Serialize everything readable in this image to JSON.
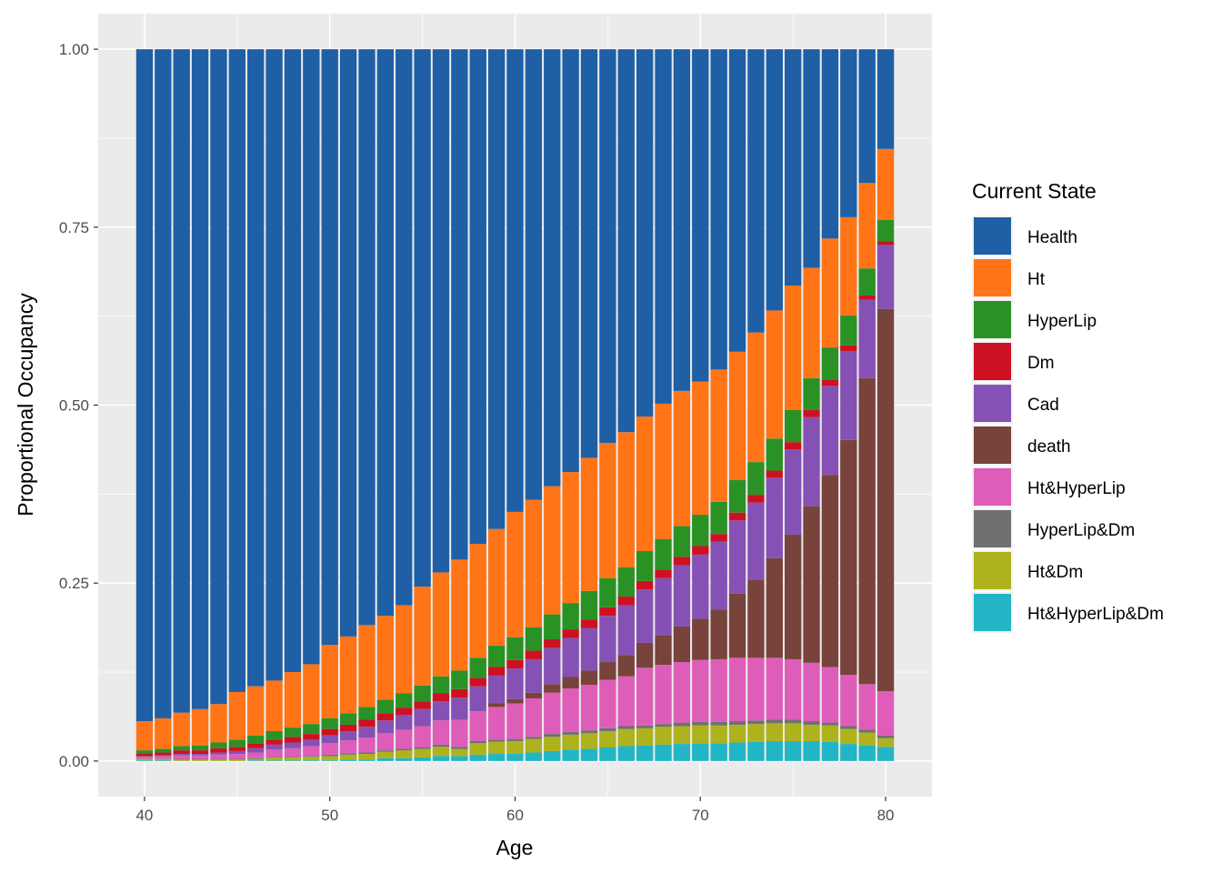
{
  "chart_data": {
    "type": "bar",
    "stacked": true,
    "xlabel": "Age",
    "ylabel": "Proportional Occupancy",
    "xlim": [
      37.5,
      82.5
    ],
    "ylim": [
      -0.05,
      1.05
    ],
    "x_ticks": [
      40,
      50,
      60,
      70,
      80
    ],
    "x_tick_labels": [
      "40",
      "50",
      "60",
      "70",
      "80"
    ],
    "y_ticks": [
      0,
      0.25,
      0.5,
      0.75,
      1
    ],
    "y_tick_labels": [
      "0.00",
      "0.25",
      "0.50",
      "0.75",
      "1.00"
    ],
    "legend": {
      "title": "Current State",
      "placement": "right"
    },
    "x": [
      40,
      41,
      42,
      43,
      44,
      45,
      46,
      47,
      48,
      49,
      50,
      51,
      52,
      53,
      54,
      55,
      56,
      57,
      58,
      59,
      60,
      61,
      62,
      63,
      64,
      65,
      66,
      67,
      68,
      69,
      70,
      71,
      72,
      73,
      74,
      75,
      76,
      77,
      78,
      79,
      80
    ],
    "series": [
      {
        "name": "Health",
        "color": "#1F5FA5",
        "values": [
          0.944,
          0.94,
          0.932,
          0.927,
          0.92,
          0.903,
          0.895,
          0.887,
          0.875,
          0.864,
          0.837,
          0.825,
          0.809,
          0.796,
          0.781,
          0.755,
          0.735,
          0.717,
          0.695,
          0.674,
          0.645,
          0.625,
          0.605,
          0.582,
          0.56,
          0.536,
          0.515,
          0.495,
          0.473,
          0.452,
          0.432,
          0.41,
          0.387,
          0.364,
          0.337,
          0.306,
          0.276,
          0.247,
          0.216,
          0.178,
          0.14
        ]
      },
      {
        "name": "Ht",
        "color": "#FF7417",
        "values": [
          0.041,
          0.043,
          0.047,
          0.051,
          0.054,
          0.067,
          0.069,
          0.071,
          0.078,
          0.084,
          0.103,
          0.108,
          0.115,
          0.118,
          0.124,
          0.139,
          0.146,
          0.156,
          0.16,
          0.164,
          0.176,
          0.179,
          0.18,
          0.184,
          0.187,
          0.19,
          0.19,
          0.189,
          0.19,
          0.19,
          0.187,
          0.186,
          0.18,
          0.182,
          0.18,
          0.175,
          0.155,
          0.153,
          0.138,
          0.12,
          0.1
        ]
      },
      {
        "name": "HyperLip",
        "color": "#2A9224",
        "values": [
          0.004,
          0.005,
          0.006,
          0.007,
          0.008,
          0.01,
          0.011,
          0.012,
          0.013,
          0.014,
          0.015,
          0.016,
          0.018,
          0.019,
          0.02,
          0.022,
          0.024,
          0.026,
          0.028,
          0.03,
          0.032,
          0.033,
          0.035,
          0.037,
          0.04,
          0.041,
          0.041,
          0.042,
          0.043,
          0.043,
          0.044,
          0.045,
          0.046,
          0.046,
          0.045,
          0.045,
          0.045,
          0.045,
          0.042,
          0.038,
          0.03
        ]
      },
      {
        "name": "Dm",
        "color": "#CD1122",
        "values": [
          0.004,
          0.004,
          0.005,
          0.005,
          0.006,
          0.006,
          0.007,
          0.007,
          0.008,
          0.008,
          0.009,
          0.009,
          0.01,
          0.01,
          0.01,
          0.011,
          0.011,
          0.012,
          0.012,
          0.012,
          0.012,
          0.012,
          0.012,
          0.012,
          0.012,
          0.012,
          0.012,
          0.012,
          0.012,
          0.012,
          0.012,
          0.011,
          0.011,
          0.011,
          0.01,
          0.01,
          0.01,
          0.009,
          0.008,
          0.006,
          0.005
        ]
      },
      {
        "name": "Cad",
        "color": "#8651B4",
        "values": [
          0.001,
          0.001,
          0.002,
          0.002,
          0.003,
          0.004,
          0.006,
          0.007,
          0.008,
          0.009,
          0.011,
          0.013,
          0.015,
          0.018,
          0.021,
          0.024,
          0.027,
          0.031,
          0.035,
          0.039,
          0.043,
          0.047,
          0.051,
          0.055,
          0.06,
          0.065,
          0.07,
          0.075,
          0.08,
          0.086,
          0.09,
          0.095,
          0.103,
          0.108,
          0.113,
          0.12,
          0.125,
          0.125,
          0.125,
          0.11,
          0.09
        ]
      },
      {
        "name": "death",
        "color": "#78433B",
        "values": [
          0.0,
          0.0,
          0.0,
          0.0,
          0.0,
          0.0,
          0.0,
          0.0,
          0.0,
          0.0,
          0.0,
          0.0,
          0.0,
          0.0,
          0.0,
          0.0,
          0.0,
          0.0,
          0.0,
          0.005,
          0.006,
          0.008,
          0.012,
          0.016,
          0.02,
          0.025,
          0.03,
          0.035,
          0.042,
          0.05,
          0.058,
          0.07,
          0.09,
          0.11,
          0.14,
          0.175,
          0.22,
          0.27,
          0.33,
          0.43,
          0.537
        ]
      },
      {
        "name": "Ht&HyperLip",
        "color": "#DE5DB9",
        "values": [
          0.003,
          0.004,
          0.005,
          0.005,
          0.006,
          0.007,
          0.008,
          0.01,
          0.012,
          0.014,
          0.016,
          0.018,
          0.021,
          0.024,
          0.027,
          0.03,
          0.034,
          0.038,
          0.042,
          0.046,
          0.05,
          0.054,
          0.058,
          0.061,
          0.064,
          0.068,
          0.07,
          0.081,
          0.083,
          0.085,
          0.087,
          0.088,
          0.089,
          0.088,
          0.087,
          0.085,
          0.082,
          0.078,
          0.072,
          0.064,
          0.062
        ]
      },
      {
        "name": "HyperLip&Dm",
        "color": "#707070",
        "values": [
          0.0,
          0.0,
          0.001,
          0.001,
          0.001,
          0.001,
          0.001,
          0.001,
          0.001,
          0.001,
          0.002,
          0.002,
          0.002,
          0.002,
          0.002,
          0.002,
          0.003,
          0.003,
          0.003,
          0.003,
          0.003,
          0.003,
          0.004,
          0.004,
          0.004,
          0.004,
          0.004,
          0.004,
          0.004,
          0.005,
          0.005,
          0.005,
          0.005,
          0.005,
          0.005,
          0.005,
          0.005,
          0.004,
          0.004,
          0.004,
          0.004
        ]
      },
      {
        "name": "Ht&Dm",
        "color": "#AEB21D",
        "values": [
          0.002,
          0.002,
          0.002,
          0.002,
          0.002,
          0.002,
          0.002,
          0.004,
          0.004,
          0.005,
          0.006,
          0.007,
          0.008,
          0.009,
          0.011,
          0.012,
          0.013,
          0.01,
          0.016,
          0.017,
          0.018,
          0.019,
          0.02,
          0.021,
          0.022,
          0.023,
          0.024,
          0.024,
          0.025,
          0.025,
          0.025,
          0.025,
          0.025,
          0.025,
          0.025,
          0.025,
          0.023,
          0.023,
          0.021,
          0.018,
          0.012
        ]
      },
      {
        "name": "Ht&HyperLip&Dm",
        "color": "#22B5C5",
        "values": [
          0.001,
          0.001,
          0.0,
          0.0,
          0.0,
          0.0,
          0.001,
          0.001,
          0.001,
          0.001,
          0.001,
          0.002,
          0.002,
          0.004,
          0.004,
          0.005,
          0.007,
          0.007,
          0.009,
          0.01,
          0.01,
          0.012,
          0.014,
          0.016,
          0.017,
          0.019,
          0.021,
          0.022,
          0.023,
          0.024,
          0.025,
          0.025,
          0.026,
          0.027,
          0.028,
          0.028,
          0.028,
          0.027,
          0.024,
          0.022,
          0.02
        ]
      }
    ]
  }
}
